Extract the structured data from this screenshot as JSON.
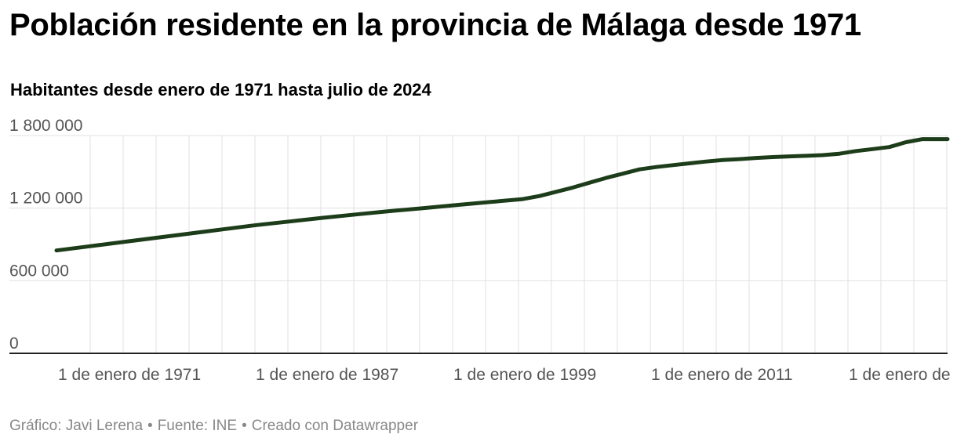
{
  "title": "Población residente en la provincia de Málaga desde 1971",
  "subtitle": "Habitantes desde enero de 1971 hasta julio de 2024",
  "footer": {
    "chart_by": "Gráfico: Javi Lerena",
    "source": "Fuente: INE",
    "made_with": "Creado con Datawrapper",
    "separator": "•"
  },
  "colors": {
    "line": "#1d3d1a",
    "grid": "#e0e0e0",
    "axis": "#222222",
    "tick_text": "#555555"
  },
  "chart_data": {
    "type": "line",
    "title": "Población residente en la provincia de Málaga desde 1971",
    "subtitle": "Habitantes desde enero de 1971 hasta julio de 2024",
    "xlabel": "",
    "ylabel": "",
    "ylim": [
      0,
      1800000
    ],
    "yticks": [
      0,
      600000,
      1200000,
      1800000
    ],
    "ytick_labels": [
      "0",
      "600 000",
      "1 200 000",
      "1 800 000"
    ],
    "xlim": [
      1971,
      2024.5
    ],
    "xtick_labels": [
      "1 de enero de 1971",
      "1 de enero de 1987",
      "1 de enero de 1999",
      "1 de enero de 2011",
      "1 de enero de"
    ],
    "grid": true,
    "legend": "none",
    "series": [
      {
        "x": [
          1971,
          1973,
          1975,
          1977,
          1979,
          1981,
          1983,
          1985,
          1987,
          1989,
          1991,
          1993,
          1995,
          1997,
          1999,
          2000,
          2001,
          2002,
          2003,
          2004,
          2005,
          2006,
          2007,
          2008,
          2009,
          2010,
          2011,
          2012,
          2013,
          2014,
          2015,
          2016,
          2017,
          2018,
          2019,
          2020,
          2021,
          2022,
          2023,
          2024,
          2024.5
        ],
        "y": [
          850000,
          885000,
          920000,
          955000,
          990000,
          1025000,
          1060000,
          1090000,
          1120000,
          1148000,
          1175000,
          1200000,
          1225000,
          1250000,
          1275000,
          1300000,
          1335000,
          1370000,
          1410000,
          1450000,
          1485000,
          1520000,
          1540000,
          1555000,
          1570000,
          1585000,
          1598000,
          1605000,
          1615000,
          1622000,
          1628000,
          1632000,
          1638000,
          1650000,
          1672000,
          1688000,
          1705000,
          1745000,
          1770000,
          1770000,
          1770000
        ]
      }
    ]
  }
}
